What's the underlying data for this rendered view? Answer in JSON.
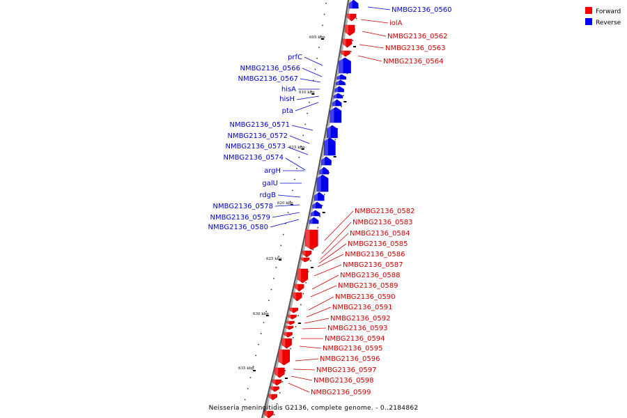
{
  "title": "Neisseria meningitidis G2136, complete genome. - 0..2184862",
  "legend": [
    {
      "label": "Forward",
      "color": "#ff0000"
    },
    {
      "label": "Reverse",
      "color": "#0000ff"
    }
  ],
  "ticks": [
    "605 kbp",
    "610 kbp",
    "615 kbp",
    "620 kbp",
    "625 kbp",
    "630 kbp",
    "635 kbp"
  ],
  "genes": [
    {
      "label": "NMBG2136_0560",
      "strand": "reverse"
    },
    {
      "label": "iolA",
      "strand": "forward"
    },
    {
      "label": "NMBG2136_0562",
      "strand": "forward"
    },
    {
      "label": "NMBG2136_0563",
      "strand": "forward"
    },
    {
      "label": "NMBG2136_0564",
      "strand": "forward"
    },
    {
      "label": "prfC",
      "strand": "reverse"
    },
    {
      "label": "NMBG2136_0566",
      "strand": "reverse"
    },
    {
      "label": "NMBG2136_0567",
      "strand": "reverse"
    },
    {
      "label": "hisA",
      "strand": "reverse"
    },
    {
      "label": "hisH",
      "strand": "reverse"
    },
    {
      "label": "pta",
      "strand": "reverse"
    },
    {
      "label": "NMBG2136_0571",
      "strand": "reverse"
    },
    {
      "label": "NMBG2136_0572",
      "strand": "reverse"
    },
    {
      "label": "NMBG2136_0573",
      "strand": "reverse"
    },
    {
      "label": "NMBG2136_0574",
      "strand": "reverse"
    },
    {
      "label": "argH",
      "strand": "reverse"
    },
    {
      "label": "galU",
      "strand": "reverse"
    },
    {
      "label": "rdgB",
      "strand": "reverse"
    },
    {
      "label": "NMBG2136_0578",
      "strand": "reverse"
    },
    {
      "label": "NMBG2136_0579",
      "strand": "reverse"
    },
    {
      "label": "NMBG2136_0580",
      "strand": "reverse"
    },
    {
      "label": "NMBG2136_0582",
      "strand": "forward"
    },
    {
      "label": "NMBG2136_0583",
      "strand": "forward"
    },
    {
      "label": "NMBG2136_0584",
      "strand": "forward"
    },
    {
      "label": "NMBG2136_0585",
      "strand": "forward"
    },
    {
      "label": "NMBG2136_0586",
      "strand": "forward"
    },
    {
      "label": "NMBG2136_0587",
      "strand": "forward"
    },
    {
      "label": "NMBG2136_0588",
      "strand": "forward"
    },
    {
      "label": "NMBG2136_0589",
      "strand": "forward"
    },
    {
      "label": "NMBG2136_0590",
      "strand": "forward"
    },
    {
      "label": "NMBG2136_0591",
      "strand": "forward"
    },
    {
      "label": "NMBG2136_0592",
      "strand": "forward"
    },
    {
      "label": "NMBG2136_0593",
      "strand": "forward"
    },
    {
      "label": "NMBG2136_0594",
      "strand": "forward"
    },
    {
      "label": "NMBG2136_0595",
      "strand": "forward"
    },
    {
      "label": "NMBG2136_0596",
      "strand": "forward"
    },
    {
      "label": "NMBG2136_0597",
      "strand": "forward"
    },
    {
      "label": "NMBG2136_0598",
      "strand": "forward"
    },
    {
      "label": "NMBG2136_0599",
      "strand": "forward"
    }
  ]
}
